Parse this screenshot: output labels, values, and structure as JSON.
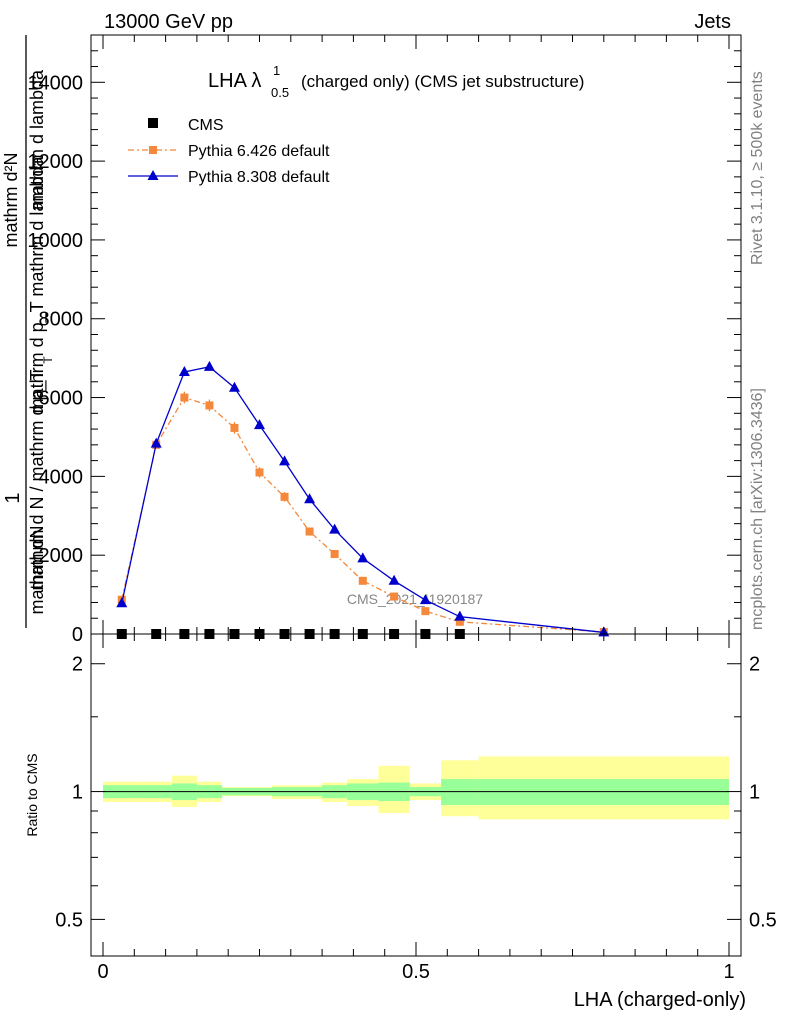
{
  "header": {
    "energy_label": "13000 GeV pp",
    "process_label": "Jets"
  },
  "side_text": {
    "rivet": "Rivet 3.1.10, ≥ 500k events",
    "mcplots": "mcplots.cern.ch [arXiv:1306.3436]"
  },
  "chart_data": [
    {
      "type": "line",
      "title": "(charged only) (CMS jet substructure)",
      "title_main": "LHA λ",
      "title_sup": "1",
      "title_sub": "0.5",
      "ylabel_num": "mathrm d²N",
      "ylabel_den": "mathrm d p_T mathrm d lambda",
      "ylabel_prefix": "1",
      "ylabel_frac": "mathrm d N / mathrm d p_T",
      "ylabel_bottom": "mathrm dN",
      "ylabel_top": "mathrm d lambda",
      "ylabel_T": "T",
      "xlim": [
        0,
        1
      ],
      "ylim": [
        0,
        15200
      ],
      "yticks": [
        2000,
        4000,
        6000,
        8000,
        10000,
        12000,
        14000
      ],
      "ytick_labels": [
        "2000",
        "4000",
        "6000",
        "8000",
        "10000",
        "12000",
        "14000"
      ],
      "watermark": "CMS_2021_I1920187",
      "legend": [
        "CMS",
        "Pythia 6.426 default",
        "Pythia 8.308 default"
      ],
      "colors": {
        "cms": "#000000",
        "py6": "#f5883a",
        "py8": "#0000cc",
        "band_green": "#99ff99",
        "band_yellow": "#ffff99"
      },
      "series": [
        {
          "name": "CMS",
          "x": [
            0.03,
            0.085,
            0.13,
            0.17,
            0.21,
            0.25,
            0.29,
            0.33,
            0.37,
            0.415,
            0.465,
            0.515,
            0.57
          ],
          "y": [
            0,
            0,
            0,
            0,
            0,
            0,
            0,
            0,
            0,
            0,
            0,
            0,
            0
          ]
        },
        {
          "name": "Pythia 6.426 default",
          "x": [
            0.03,
            0.085,
            0.13,
            0.17,
            0.21,
            0.25,
            0.29,
            0.33,
            0.37,
            0.415,
            0.465,
            0.515,
            0.57,
            0.8
          ],
          "y": [
            870,
            4800,
            6000,
            5800,
            5230,
            4100,
            3480,
            2600,
            2030,
            1350,
            950,
            580,
            310,
            50
          ],
          "err": [
            60,
            80,
            150,
            150,
            150,
            130,
            120,
            100,
            90,
            70,
            60,
            50,
            40,
            20
          ]
        },
        {
          "name": "Pythia 8.308 default",
          "x": [
            0.03,
            0.085,
            0.13,
            0.17,
            0.21,
            0.25,
            0.29,
            0.33,
            0.37,
            0.415,
            0.465,
            0.515,
            0.57,
            0.8
          ],
          "y": [
            780,
            4830,
            6650,
            6780,
            6250,
            5300,
            4380,
            3420,
            2650,
            1920,
            1350,
            860,
            440,
            40
          ]
        }
      ]
    },
    {
      "type": "area",
      "ylabel": "Ratio to CMS",
      "xlabel": "LHA (charged-only)",
      "xlim": [
        0,
        1
      ],
      "ylim": [
        0.41,
        2.35
      ],
      "yscale": "log",
      "yticks": [
        0.5,
        1,
        2
      ],
      "ytick_labels": [
        "0.5",
        "1",
        "2"
      ],
      "xticks": [
        0,
        0.5,
        1
      ],
      "xtick_labels": [
        "0",
        "0.5",
        "1"
      ],
      "bins": [
        0,
        0.06,
        0.11,
        0.15,
        0.19,
        0.23,
        0.27,
        0.31,
        0.35,
        0.39,
        0.44,
        0.49,
        0.54,
        0.6,
        1.0
      ],
      "green_lo": [
        0.965,
        0.965,
        0.955,
        0.965,
        0.98,
        0.98,
        0.975,
        0.975,
        0.965,
        0.955,
        0.95,
        0.975,
        0.93,
        0.93
      ],
      "green_hi": [
        1.035,
        1.035,
        1.045,
        1.035,
        1.02,
        1.02,
        1.025,
        1.025,
        1.035,
        1.045,
        1.05,
        1.025,
        1.07,
        1.07
      ],
      "yellow_lo": [
        0.945,
        0.945,
        0.92,
        0.945,
        0.975,
        0.975,
        0.96,
        0.96,
        0.945,
        0.925,
        0.89,
        0.955,
        0.875,
        0.86
      ],
      "yellow_hi": [
        1.055,
        1.055,
        1.09,
        1.055,
        1.025,
        1.025,
        1.035,
        1.035,
        1.05,
        1.07,
        1.15,
        1.045,
        1.185,
        1.21
      ]
    }
  ]
}
